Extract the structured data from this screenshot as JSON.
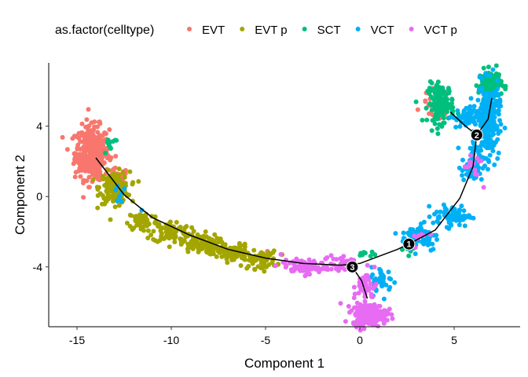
{
  "chart_data": {
    "type": "scatter",
    "xlabel": "Component 1",
    "ylabel": "Component 2",
    "xlim": [
      -16.5,
      8.5
    ],
    "ylim": [
      -7.4,
      7.6
    ],
    "x_ticks": [
      -15,
      -10,
      -5,
      0,
      5
    ],
    "x_tick_labels": [
      "-15",
      "-10",
      "-5",
      "0",
      "5"
    ],
    "y_ticks": [
      4,
      0,
      -4
    ],
    "y_tick_labels": [
      "4",
      "0",
      "-4"
    ],
    "grid": false,
    "legend": {
      "title": "as.factor(celltype)",
      "position": "top"
    },
    "series": [
      {
        "name": "EVT",
        "color": "#F8766D",
        "clusters": [
          {
            "cx": -14.2,
            "cy": 2.5,
            "sx": 0.45,
            "sy": 0.75,
            "n": 380
          },
          {
            "cx": -12.9,
            "cy": 1.1,
            "sx": 0.3,
            "sy": 0.25,
            "n": 20
          },
          {
            "cx": 4.0,
            "cy": 5.3,
            "sx": 0.35,
            "sy": 0.4,
            "n": 25
          },
          {
            "cx": 4.0,
            "cy": 4.5,
            "sx": 0.2,
            "sy": 0.2,
            "n": 8
          },
          {
            "cx": -5.0,
            "cy": -3.6,
            "sx": 0.3,
            "sy": 0.2,
            "n": 5
          }
        ]
      },
      {
        "name": "EVT p",
        "color": "#A3A500",
        "clusters": [
          {
            "cx": -13.0,
            "cy": 0.5,
            "sx": 0.4,
            "sy": 0.45,
            "n": 160
          },
          {
            "cx": -11.5,
            "cy": -1.4,
            "sx": 0.4,
            "sy": 0.3,
            "n": 60
          },
          {
            "cx": -10.0,
            "cy": -2.0,
            "sx": 0.5,
            "sy": 0.3,
            "n": 80
          },
          {
            "cx": -8.5,
            "cy": -2.7,
            "sx": 0.5,
            "sy": 0.3,
            "n": 90
          },
          {
            "cx": -6.8,
            "cy": -3.2,
            "sx": 0.5,
            "sy": 0.25,
            "n": 90
          },
          {
            "cx": -5.3,
            "cy": -3.6,
            "sx": 0.45,
            "sy": 0.25,
            "n": 70
          }
        ]
      },
      {
        "name": "SCT",
        "color": "#00BF7D",
        "clusters": [
          {
            "cx": 4.3,
            "cy": 5.3,
            "sx": 0.35,
            "sy": 0.55,
            "n": 130
          },
          {
            "cx": 6.9,
            "cy": 6.4,
            "sx": 0.3,
            "sy": 0.4,
            "n": 110
          },
          {
            "cx": -13.2,
            "cy": 2.9,
            "sx": 0.25,
            "sy": 0.3,
            "n": 10
          },
          {
            "cx": 0.3,
            "cy": -3.2,
            "sx": 0.3,
            "sy": 0.15,
            "n": 8
          },
          {
            "cx": 2.5,
            "cy": -3.0,
            "sx": 0.25,
            "sy": 0.15,
            "n": 5
          }
        ]
      },
      {
        "name": "VCT",
        "color": "#00B0F6",
        "clusters": [
          {
            "cx": 6.8,
            "cy": 4.3,
            "sx": 0.3,
            "sy": 1.0,
            "n": 240
          },
          {
            "cx": 5.6,
            "cy": 4.5,
            "sx": 0.35,
            "sy": 0.3,
            "n": 50
          },
          {
            "cx": 6.0,
            "cy": 1.8,
            "sx": 0.3,
            "sy": 0.6,
            "n": 60
          },
          {
            "cx": 4.9,
            "cy": -1.1,
            "sx": 0.5,
            "sy": 0.3,
            "n": 70
          },
          {
            "cx": 3.2,
            "cy": -2.3,
            "sx": 0.5,
            "sy": 0.4,
            "n": 70
          },
          {
            "cx": 1.2,
            "cy": -4.8,
            "sx": 0.3,
            "sy": 0.4,
            "n": 40
          },
          {
            "cx": -12.7,
            "cy": 0.3,
            "sx": 0.4,
            "sy": 0.5,
            "n": 8
          }
        ]
      },
      {
        "name": "VCT p",
        "color": "#E76BF3",
        "clusters": [
          {
            "cx": 0.5,
            "cy": -6.7,
            "sx": 0.45,
            "sy": 0.3,
            "n": 220
          },
          {
            "cx": 0.3,
            "cy": -5.1,
            "sx": 0.3,
            "sy": 0.4,
            "n": 40
          },
          {
            "cx": -3.0,
            "cy": -4.0,
            "sx": 0.6,
            "sy": 0.2,
            "n": 80
          },
          {
            "cx": -1.0,
            "cy": -3.8,
            "sx": 0.5,
            "sy": 0.25,
            "n": 40
          },
          {
            "cx": 6.0,
            "cy": 1.8,
            "sx": 0.25,
            "sy": 0.5,
            "n": 15
          },
          {
            "cx": 3.0,
            "cy": -2.3,
            "sx": 0.3,
            "sy": 0.2,
            "n": 8
          }
        ]
      }
    ],
    "trajectory": [
      {
        "points": [
          [
            -14.0,
            2.2
          ],
          [
            -12.5,
            0.1
          ],
          [
            -11.0,
            -1.2
          ],
          [
            -9.0,
            -2.2
          ],
          [
            -7.0,
            -3.0
          ],
          [
            -5.0,
            -3.5
          ],
          [
            -3.0,
            -3.8
          ],
          [
            -1.0,
            -3.9
          ],
          [
            0.0,
            -3.8
          ],
          [
            1.0,
            -3.4
          ],
          [
            2.0,
            -3.0
          ],
          [
            2.6,
            -2.7
          ],
          [
            4.0,
            -1.9
          ],
          [
            5.3,
            -0.1
          ],
          [
            6.0,
            1.7
          ],
          [
            6.2,
            3.5
          ]
        ]
      },
      {
        "points": [
          [
            6.2,
            3.5
          ],
          [
            5.6,
            4.0
          ],
          [
            4.8,
            4.8
          ]
        ]
      },
      {
        "points": [
          [
            6.2,
            3.5
          ],
          [
            6.8,
            4.4
          ],
          [
            7.0,
            5.6
          ]
        ]
      },
      {
        "points": [
          [
            -0.4,
            -4.0
          ],
          [
            0.1,
            -4.8
          ],
          [
            0.4,
            -5.8
          ]
        ]
      }
    ],
    "branch_points": [
      {
        "label": "1",
        "x": 2.6,
        "y": -2.7
      },
      {
        "label": "2",
        "x": 6.2,
        "y": 3.5
      },
      {
        "label": "3",
        "x": -0.4,
        "y": -4.0
      }
    ]
  }
}
